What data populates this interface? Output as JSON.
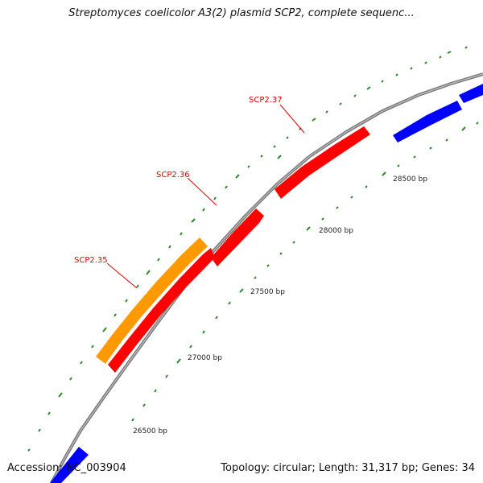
{
  "title": "Streptomyces coelicolor A3(2) plasmid SCP2, complete sequenc...",
  "footer": {
    "accession": "Accession: NC_003904",
    "summary": "Topology: circular; Length: 31,317 bp; Genes: 34"
  },
  "ticks": [
    {
      "label": "26500 bp",
      "position": 26500
    },
    {
      "label": "27000 bp",
      "position": 27000
    },
    {
      "label": "27500 bp",
      "position": 27500
    },
    {
      "label": "28000 bp",
      "position": 28000
    },
    {
      "label": "28500 bp",
      "position": 28500
    }
  ],
  "genes": [
    {
      "name": "SCP2.35",
      "color": "#ff9900"
    },
    {
      "name": "SCP2.36",
      "color": "#ff0000"
    },
    {
      "name": "SCP2.37",
      "color": "#ff0000"
    }
  ],
  "colors": {
    "backbone": "#888888",
    "tick": "#2a8a2a",
    "gene_red": "#ff0000",
    "gene_orange": "#ff9900",
    "gene_blue": "#0000ff",
    "label": "#e00000"
  }
}
